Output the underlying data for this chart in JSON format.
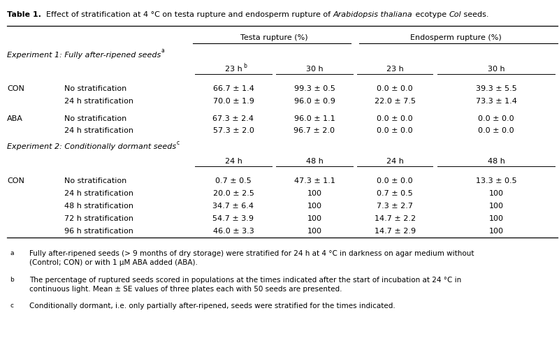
{
  "title_bold": "Table 1.",
  "title_rest": "  Effect of stratification at 4 °C on testa rupture and endosperm rupture of ",
  "title_italic": "Arabidopsis thaliana",
  "title_end": " ecotype ",
  "title_col_italic": "Col",
  "title_final": " seeds.",
  "col_group1": "Testa rupture (%)",
  "col_group2": "Endosperm rupture (%)",
  "exp1_label": "Experiment 1: Fully after-ripened seeds",
  "exp1_superscript": "a",
  "exp2_label": "Experiment 2: Conditionally dormant seeds",
  "exp2_superscript": "c",
  "exp1_time_headers": [
    "23 h",
    "30 h",
    "23 h",
    "30 h"
  ],
  "exp2_time_headers": [
    "24 h",
    "48 h",
    "24 h",
    "48 h"
  ],
  "exp1_rows": [
    {
      "group": "CON",
      "treatment": "No stratification",
      "vals": [
        "66.7 ± 1.4",
        "99.3 ± 0.5",
        "0.0 ± 0.0",
        "39.3 ± 5.5"
      ]
    },
    {
      "group": "",
      "treatment": "24 h stratification",
      "vals": [
        "70.0 ± 1.9",
        "96.0 ± 0.9",
        "22.0 ± 7.5",
        "73.3 ± 1.4"
      ]
    },
    {
      "group": "ABA",
      "treatment": "No stratification",
      "vals": [
        "67.3 ± 2.4",
        "96.0 ± 1.1",
        "0.0 ± 0.0",
        "0.0 ± 0.0"
      ]
    },
    {
      "group": "",
      "treatment": "24 h stratification",
      "vals": [
        "57.3 ± 2.0",
        "96.7 ± 2.0",
        "0.0 ± 0.0",
        "0.0 ± 0.0"
      ]
    }
  ],
  "exp2_rows": [
    {
      "group": "CON",
      "treatment": "No stratification",
      "vals": [
        "0.7 ± 0.5",
        "47.3 ± 1.1",
        "0.0 ± 0.0",
        "13.3 ± 0.5"
      ]
    },
    {
      "group": "",
      "treatment": "24 h stratification",
      "vals": [
        "20.0 ± 2.5",
        "100",
        "0.7 ± 0.5",
        "100"
      ]
    },
    {
      "group": "",
      "treatment": "48 h stratification",
      "vals": [
        "34.7 ± 6.4",
        "100",
        "7.3 ± 2.7",
        "100"
      ]
    },
    {
      "group": "",
      "treatment": "72 h stratification",
      "vals": [
        "54.7 ± 3.9",
        "100",
        "14.7 ± 2.2",
        "100"
      ]
    },
    {
      "group": "",
      "treatment": "96 h stratification",
      "vals": [
        "46.0 ± 3.3",
        "100",
        "14.7 ± 2.9",
        "100"
      ]
    }
  ],
  "footnotes": [
    {
      "sup": "a",
      "text": "Fully after-ripened seeds (> 9 months of dry storage) were stratified for 24 h at 4 °C in darkness on agar medium without\n(Control; CON) or with 1 μM ABA added (ABA)."
    },
    {
      "sup": "b",
      "text": "The percentage of ruptured seeds scored in populations at the times indicated after the start of incubation at 24 °C in\ncontinuous light. Mean ± SE values of three plates each with 50 seeds are presented."
    },
    {
      "sup": "c",
      "text": "Conditionally dormant, i.e. only partially after-ripened, seeds were stratified for the times indicated."
    }
  ],
  "bg_color": "white",
  "text_color": "black",
  "border_color": "black",
  "font_size": 8.0,
  "title_font_size": 8.0
}
